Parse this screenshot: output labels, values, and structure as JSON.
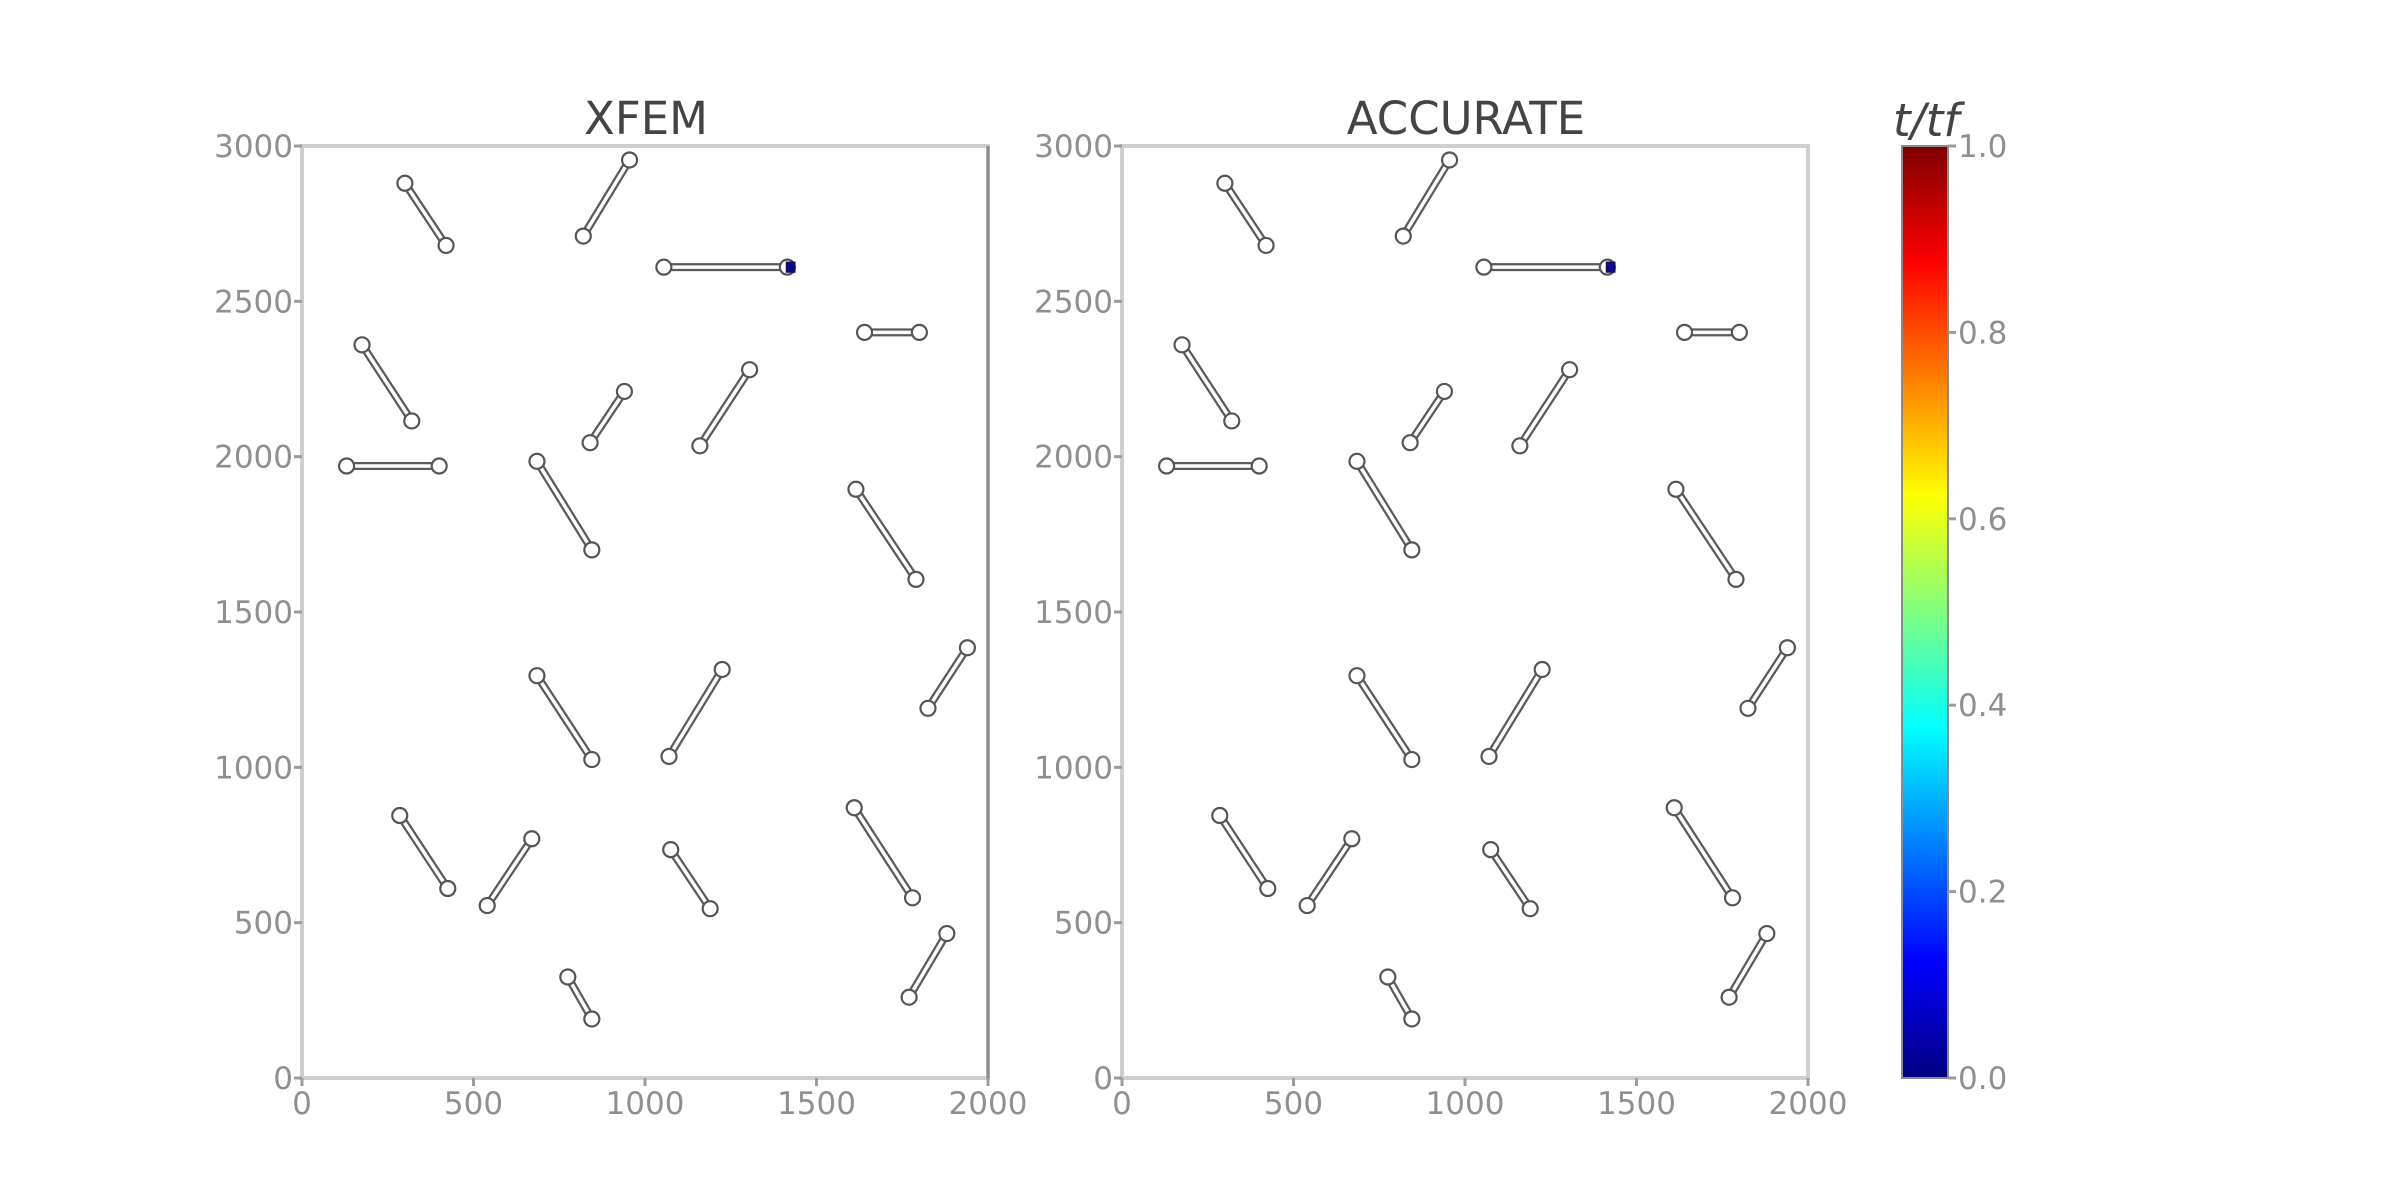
{
  "chart_data": [
    {
      "type": "scatter",
      "title": "XFEM",
      "xlim": [
        0,
        2000
      ],
      "ylim": [
        0,
        3000
      ],
      "xticks": [
        "0",
        "500",
        "1000",
        "1500",
        "2000"
      ],
      "yticks": [
        "0",
        "500",
        "1000",
        "1500",
        "2000",
        "2500",
        "3000"
      ],
      "grid": false,
      "segments": [
        {
          "x1": 300,
          "y1": 2880,
          "x2": 420,
          "y2": 2680
        },
        {
          "x1": 820,
          "y1": 2710,
          "x2": 955,
          "y2": 2955
        },
        {
          "x1": 1055,
          "y1": 2610,
          "x2": 1415,
          "y2": 2610
        },
        {
          "x1": 1640,
          "y1": 2400,
          "x2": 1800,
          "y2": 2400
        },
        {
          "x1": 175,
          "y1": 2360,
          "x2": 320,
          "y2": 2115
        },
        {
          "x1": 840,
          "y1": 2045,
          "x2": 940,
          "y2": 2210
        },
        {
          "x1": 1160,
          "y1": 2035,
          "x2": 1305,
          "y2": 2280
        },
        {
          "x1": 130,
          "y1": 1970,
          "x2": 400,
          "y2": 1970
        },
        {
          "x1": 685,
          "y1": 1985,
          "x2": 845,
          "y2": 1700
        },
        {
          "x1": 1615,
          "y1": 1895,
          "x2": 1790,
          "y2": 1605
        },
        {
          "x1": 1825,
          "y1": 1190,
          "x2": 1940,
          "y2": 1385
        },
        {
          "x1": 685,
          "y1": 1295,
          "x2": 845,
          "y2": 1025
        },
        {
          "x1": 1070,
          "y1": 1035,
          "x2": 1225,
          "y2": 1315
        },
        {
          "x1": 285,
          "y1": 845,
          "x2": 425,
          "y2": 610
        },
        {
          "x1": 540,
          "y1": 555,
          "x2": 670,
          "y2": 770
        },
        {
          "x1": 1610,
          "y1": 870,
          "x2": 1780,
          "y2": 580
        },
        {
          "x1": 1075,
          "y1": 735,
          "x2": 1190,
          "y2": 545
        },
        {
          "x1": 1770,
          "y1": 260,
          "x2": 1880,
          "y2": 465
        },
        {
          "x1": 775,
          "y1": 325,
          "x2": 845,
          "y2": 190
        }
      ],
      "growth": [
        {
          "x1": 1415,
          "y1": 2610,
          "x2": 1440,
          "y2": 2610,
          "t": 0.0
        }
      ]
    },
    {
      "type": "scatter",
      "title": "ACCURATE",
      "xlim": [
        0,
        2000
      ],
      "ylim": [
        0,
        3000
      ],
      "xticks": [
        "0",
        "500",
        "1000",
        "1500",
        "2000"
      ],
      "yticks": [
        "0",
        "500",
        "1000",
        "1500",
        "2000",
        "2500",
        "3000"
      ],
      "grid": false,
      "segments": [
        {
          "x1": 300,
          "y1": 2880,
          "x2": 420,
          "y2": 2680
        },
        {
          "x1": 820,
          "y1": 2710,
          "x2": 955,
          "y2": 2955
        },
        {
          "x1": 1055,
          "y1": 2610,
          "x2": 1415,
          "y2": 2610
        },
        {
          "x1": 1640,
          "y1": 2400,
          "x2": 1800,
          "y2": 2400
        },
        {
          "x1": 175,
          "y1": 2360,
          "x2": 320,
          "y2": 2115
        },
        {
          "x1": 840,
          "y1": 2045,
          "x2": 940,
          "y2": 2210
        },
        {
          "x1": 1160,
          "y1": 2035,
          "x2": 1305,
          "y2": 2280
        },
        {
          "x1": 130,
          "y1": 1970,
          "x2": 400,
          "y2": 1970
        },
        {
          "x1": 685,
          "y1": 1985,
          "x2": 845,
          "y2": 1700
        },
        {
          "x1": 1615,
          "y1": 1895,
          "x2": 1790,
          "y2": 1605
        },
        {
          "x1": 1825,
          "y1": 1190,
          "x2": 1940,
          "y2": 1385
        },
        {
          "x1": 685,
          "y1": 1295,
          "x2": 845,
          "y2": 1025
        },
        {
          "x1": 1070,
          "y1": 1035,
          "x2": 1225,
          "y2": 1315
        },
        {
          "x1": 285,
          "y1": 845,
          "x2": 425,
          "y2": 610
        },
        {
          "x1": 540,
          "y1": 555,
          "x2": 670,
          "y2": 770
        },
        {
          "x1": 1610,
          "y1": 870,
          "x2": 1780,
          "y2": 580
        },
        {
          "x1": 1075,
          "y1": 735,
          "x2": 1190,
          "y2": 545
        },
        {
          "x1": 1770,
          "y1": 260,
          "x2": 1880,
          "y2": 465
        },
        {
          "x1": 775,
          "y1": 325,
          "x2": 845,
          "y2": 190
        }
      ],
      "growth": [
        {
          "x1": 1415,
          "y1": 2610,
          "x2": 1440,
          "y2": 2610,
          "t": 0.0
        }
      ]
    }
  ],
  "colorbar": {
    "title": "t/tf",
    "range": [
      0.0,
      1.0
    ],
    "ticks": [
      "0.0",
      "0.2",
      "0.4",
      "0.6",
      "0.8",
      "1.0"
    ],
    "colormap": "jet",
    "stops": [
      "#00007f",
      "#0000ff",
      "#007fff",
      "#00ffff",
      "#7fff7f",
      "#ffff00",
      "#ff7f00",
      "#ff0000",
      "#7f0000"
    ]
  }
}
